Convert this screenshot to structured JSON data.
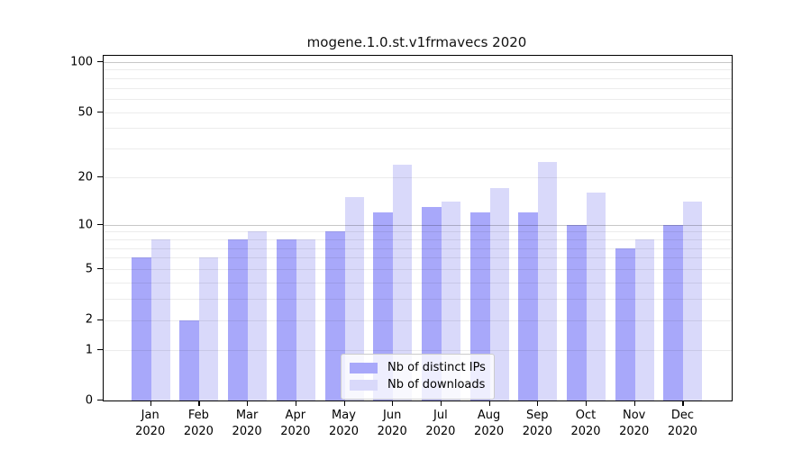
{
  "title": "mogene.1.0.st.v1frmavecs 2020",
  "chart_data": {
    "type": "bar",
    "title": "mogene.1.0.st.v1frmavecs 2020",
    "categories": [
      "Jan",
      "Feb",
      "Mar",
      "Apr",
      "May",
      "Jun",
      "Jul",
      "Aug",
      "Sep",
      "Oct",
      "Nov",
      "Dec"
    ],
    "category_year": "2020",
    "series": [
      {
        "name": "Nb of distinct IPs",
        "color": "#a8a8fa",
        "values": [
          6,
          2,
          8,
          8,
          9,
          12,
          13,
          12,
          12,
          10,
          7,
          10
        ]
      },
      {
        "name": "Nb of downloads",
        "color": "#d9d9fa",
        "values": [
          8,
          6,
          9,
          8,
          15,
          24,
          14,
          17,
          25,
          16,
          8,
          14
        ]
      }
    ],
    "xlabel": "",
    "ylabel": "",
    "yscale": "log1p",
    "ylim": [
      0,
      110
    ],
    "yticks_labeled": [
      "100",
      "50",
      "20",
      "10",
      "5",
      "2",
      "1",
      "0"
    ],
    "ytick_values": [
      100,
      50,
      20,
      10,
      5,
      2,
      1,
      0
    ],
    "minor_gridline_values": [
      1,
      2,
      3,
      4,
      5,
      6,
      7,
      8,
      9,
      20,
      30,
      40,
      50,
      60,
      70,
      80,
      90
    ],
    "major_gridline_values": [
      10,
      100
    ],
    "grid": "horizontal",
    "legend_position": "lower center",
    "legend_entries": [
      "Nb of distinct IPs",
      "Nb of downloads"
    ]
  },
  "colors": {
    "background": "#ffffff",
    "bar_ips": "#a8a8fa",
    "bar_downloads": "#d9d9fa",
    "spine": "#000000",
    "legend_border": "#cccccc"
  }
}
